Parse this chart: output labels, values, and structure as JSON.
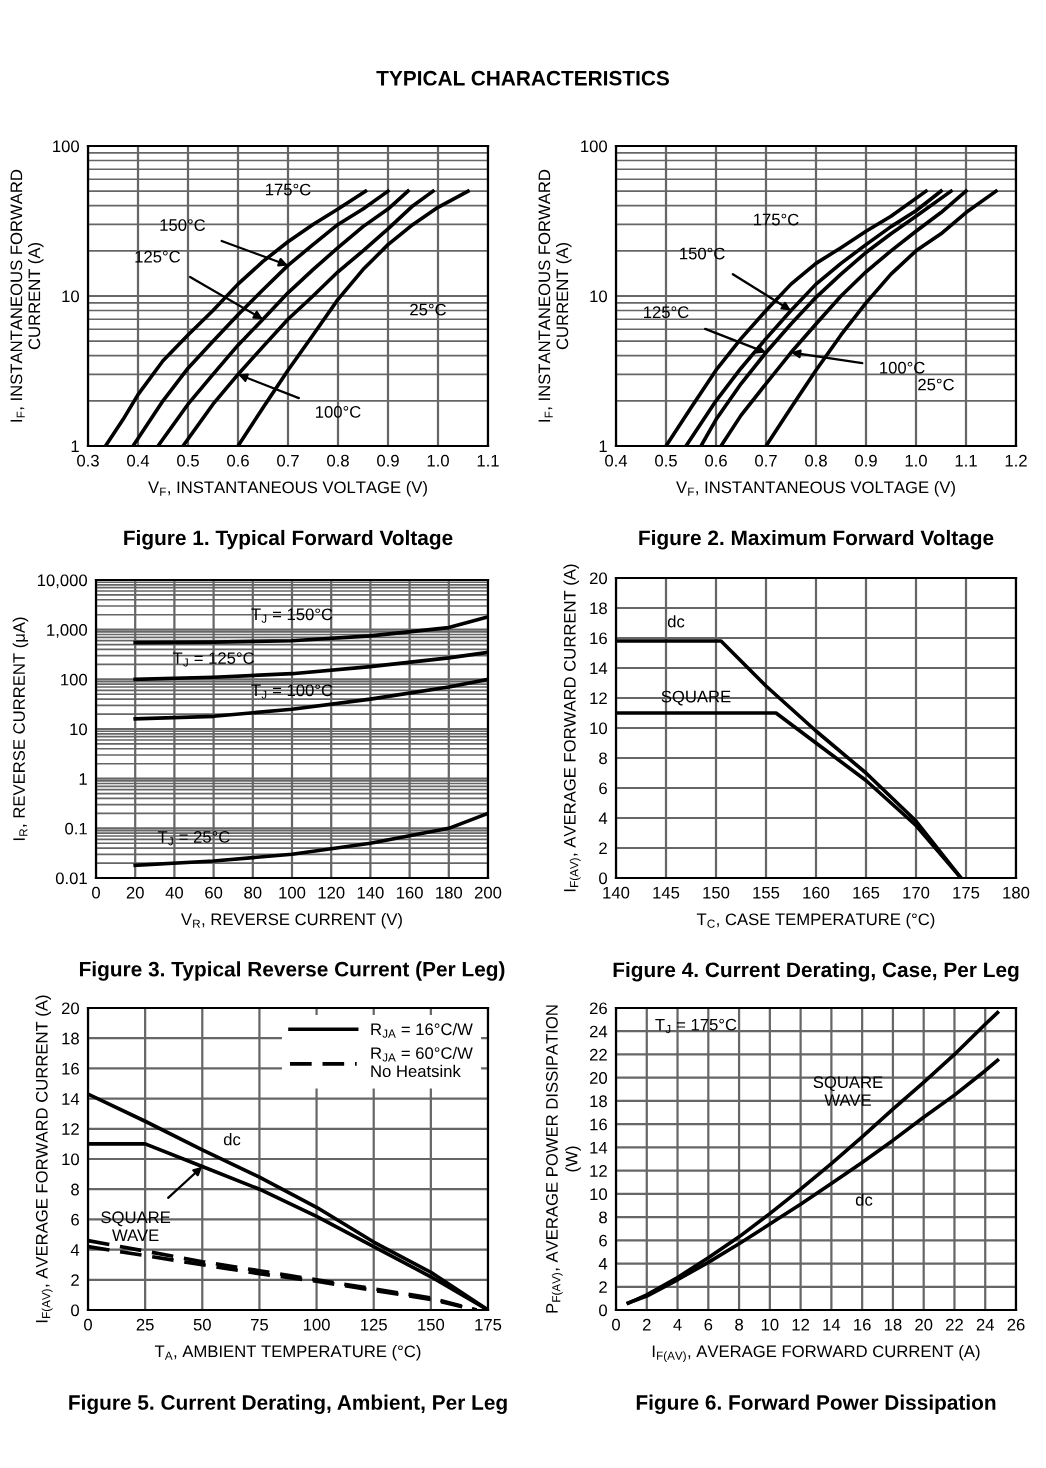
{
  "chart_data": [
    {
      "type": "line",
      "title": "Figure 1. Typical Forward Voltage",
      "xlabel": "V$_{F}$, INSTANTANEOUS VOLTAGE (V)",
      "ylabel": "I$_{F}$, INSTANTANEOUS FORWARD\nCURRENT (A)",
      "log": "y",
      "grid": true,
      "xlim": [
        0.3,
        1.1
      ],
      "xticks": [
        0.3,
        0.4,
        0.5,
        0.6,
        0.7,
        0.8,
        0.9,
        {
          "value": 1.0,
          "label": "1.0"
        },
        1.1
      ],
      "ylim": [
        1,
        100
      ],
      "yticks": [
        1,
        10,
        100
      ],
      "series": [
        {
          "color": "#000000",
          "x": [
            0.335,
            0.37,
            0.4,
            0.45,
            0.5,
            0.55,
            0.6,
            0.65,
            0.7,
            0.75,
            0.8,
            0.855
          ],
          "values": [
            1,
            1.5,
            2.2,
            3.7,
            5.5,
            8,
            12,
            17,
            23,
            30,
            38,
            50
          ]
        },
        {
          "color": "#000000",
          "x": [
            0.39,
            0.45,
            0.5,
            0.55,
            0.6,
            0.65,
            0.7,
            0.75,
            0.8,
            0.85,
            0.9
          ],
          "values": [
            1,
            2,
            3.3,
            5,
            7.5,
            11,
            16,
            22,
            30,
            38,
            50
          ]
        },
        {
          "color": "#000000",
          "x": [
            0.44,
            0.5,
            0.55,
            0.6,
            0.65,
            0.7,
            0.75,
            0.8,
            0.85,
            0.9,
            0.94
          ],
          "values": [
            1,
            1.9,
            3,
            4.7,
            7,
            10.5,
            15,
            21,
            29,
            38,
            50
          ]
        },
        {
          "color": "#000000",
          "x": [
            0.49,
            0.55,
            0.6,
            0.65,
            0.7,
            0.75,
            0.8,
            0.85,
            0.9,
            0.95,
            0.99
          ],
          "values": [
            1,
            1.9,
            3,
            4.6,
            7,
            10,
            14.5,
            20,
            28,
            40,
            50
          ]
        },
        {
          "color": "#000000",
          "x": [
            0.6,
            0.65,
            0.7,
            0.75,
            0.8,
            0.85,
            0.9,
            0.95,
            1.0,
            1.06
          ],
          "values": [
            1,
            1.8,
            3.2,
            5.5,
            9.5,
            15,
            22,
            30,
            39,
            50
          ]
        }
      ],
      "annotations": [
        "TYPICAL CHARACTERISTICS",
        "175°C",
        {
          "text": "150°C",
          "x": 0.7,
          "y": 16
        },
        {
          "text": "125°C",
          "x": 0.65,
          "y": 7
        },
        {
          "text": "100°C",
          "x": 0.6,
          "y": 3
        },
        "25°C"
      ]
    },
    {
      "type": "line",
      "title": "Figure 2. Maximum Forward Voltage",
      "xlabel": "V$_{F}$, INSTANTANEOUS VOLTAGE (V)",
      "ylabel": "I$_{F}$, INSTANTANEOUS FORWARD\nCURRENT (A)",
      "log": "y",
      "grid": true,
      "xlim": [
        0.4,
        1.2
      ],
      "xticks": [
        0.4,
        0.5,
        0.6,
        0.7,
        0.8,
        0.9,
        {
          "value": 1.0,
          "label": "1.0"
        },
        1.1,
        1.2
      ],
      "ylim": [
        1,
        100
      ],
      "yticks": [
        1,
        10,
        100
      ],
      "series": [
        {
          "color": "#000000",
          "x": [
            0.5,
            0.55,
            0.6,
            0.65,
            0.7,
            0.75,
            0.8,
            0.85,
            0.9,
            0.95,
            1.02
          ],
          "values": [
            1,
            1.8,
            3.2,
            5.2,
            8,
            12,
            16.5,
            21,
            27,
            34,
            50
          ]
        },
        {
          "color": "#000000",
          "x": [
            0.54,
            0.6,
            0.65,
            0.7,
            0.75,
            0.8,
            0.85,
            0.9,
            0.95,
            1.0,
            1.05
          ],
          "values": [
            1,
            2,
            3.3,
            5.2,
            8,
            12,
            16.5,
            22,
            29,
            37,
            50
          ]
        },
        {
          "color": "#000000",
          "x": [
            0.57,
            0.6,
            0.65,
            0.7,
            0.75,
            0.8,
            0.85,
            0.9,
            0.95,
            1.0,
            1.07
          ],
          "values": [
            1,
            1.5,
            2.6,
            4.2,
            6.5,
            9.8,
            14,
            19.5,
            26,
            34,
            50
          ]
        },
        {
          "color": "#000000",
          "x": [
            0.61,
            0.65,
            0.7,
            0.75,
            0.8,
            0.85,
            0.9,
            0.95,
            1.0,
            1.05,
            1.1
          ],
          "values": [
            1,
            1.6,
            2.6,
            4.2,
            6.5,
            10,
            14.5,
            20,
            27,
            36,
            50
          ]
        },
        {
          "color": "#000000",
          "x": [
            0.7,
            0.75,
            0.8,
            0.85,
            0.9,
            0.95,
            1.0,
            1.05,
            1.1,
            1.16
          ],
          "values": [
            1,
            1.8,
            3.2,
            5.5,
            9,
            14,
            20,
            26,
            36,
            50
          ]
        }
      ],
      "annotations": [
        "175°C",
        {
          "text": "150°C",
          "x": 0.75,
          "y": 8
        },
        {
          "text": "125°C",
          "x": 0.7,
          "y": 4.2
        },
        {
          "text": "100°C",
          "x": 0.75,
          "y": 4.2
        },
        "25°C"
      ]
    },
    {
      "type": "line",
      "title": "Figure 3. Typical Reverse Current (Per Leg)",
      "xlabel": "V$_{R}$, REVERSE CURRENT (V)",
      "ylabel": "I$_{R}$, REVERSE CURRENT (μA)",
      "log": "y",
      "grid": true,
      "xlim": [
        0,
        200
      ],
      "xticks": [
        0,
        20,
        40,
        60,
        80,
        100,
        120,
        140,
        160,
        180,
        200
      ],
      "ylim": [
        0.01,
        10000
      ],
      "yticks": [
        0.01,
        0.1,
        1,
        10,
        100,
        {
          "value": 1000,
          "label": "1,000"
        },
        {
          "value": 10000,
          "label": "10,000"
        }
      ],
      "series": [
        {
          "color": "#000000",
          "x": [
            20,
            60,
            100,
            140,
            180,
            200
          ],
          "values": [
            550,
            560,
            600,
            750,
            1100,
            1800
          ]
        },
        {
          "color": "#000000",
          "x": [
            20,
            60,
            100,
            140,
            180,
            200
          ],
          "values": [
            100,
            110,
            130,
            180,
            270,
            350
          ]
        },
        {
          "color": "#000000",
          "x": [
            20,
            60,
            100,
            140,
            180,
            200
          ],
          "values": [
            16,
            18,
            25,
            40,
            70,
            100
          ]
        },
        {
          "color": "#000000",
          "x": [
            20,
            60,
            100,
            140,
            180,
            200
          ],
          "values": [
            0.018,
            0.022,
            0.03,
            0.05,
            0.1,
            0.2
          ]
        }
      ],
      "annotations": [
        "T$_{J}$ = 150°C",
        "T$_{J}$ = 125°C",
        "T$_{J}$ = 100°C",
        "T$_{J}$ = 25°C"
      ]
    },
    {
      "type": "line",
      "title": "Figure 4. Current Derating, Case, Per Leg",
      "xlabel": "T$_{C}$, CASE TEMPERATURE (°C)",
      "ylabel": "I$_{F(AV)}$, AVERAGE FORWARD CURRENT (A)",
      "grid": true,
      "xlim": [
        140,
        180
      ],
      "xticks": [
        140,
        145,
        150,
        155,
        160,
        165,
        170,
        175,
        180
      ],
      "ylim": [
        0,
        20
      ],
      "yticks": [
        0,
        2,
        4,
        6,
        8,
        10,
        12,
        14,
        16,
        18,
        20
      ],
      "series": [
        {
          "color": "#000000",
          "x": [
            140,
            150.5,
            155,
            160,
            165,
            170,
            174.5
          ],
          "values": [
            15.8,
            15.8,
            12.8,
            9.8,
            7,
            3.8,
            0
          ]
        },
        {
          "color": "#000000",
          "x": [
            140,
            156,
            160,
            165,
            170,
            174.5
          ],
          "values": [
            11,
            11,
            9,
            6.5,
            3.5,
            0
          ]
        }
      ],
      "annotations": [
        "dc",
        "SQUARE"
      ]
    },
    {
      "type": "line",
      "title": "Figure 5. Current Derating, Ambient, Per Leg",
      "xlabel": "T$_{A}$, AMBIENT TEMPERATURE (°C)",
      "ylabel": "I$_{F(AV)}$, AVERAGE FORWARD CURRENT (A)",
      "grid": true,
      "legend": "top right",
      "xlim": [
        0,
        175
      ],
      "xticks": [
        0,
        25,
        50,
        75,
        100,
        125,
        150,
        175
      ],
      "ylim": [
        0,
        20
      ],
      "yticks": [
        0,
        2,
        4,
        6,
        8,
        10,
        12,
        14,
        16,
        18,
        20
      ],
      "series": [
        {
          "name": "R$_{JA}$ = 16°C/W",
          "color": "#000000",
          "line_style": "solid",
          "x": [
            0,
            25,
            50,
            75,
            100,
            125,
            150,
            175
          ],
          "values": [
            14.3,
            12.5,
            10.6,
            8.8,
            6.8,
            4.5,
            2.5,
            0
          ]
        },
        {
          "color": "#000000",
          "line_style": "solid",
          "x": [
            0,
            25,
            50,
            75,
            100,
            125,
            150,
            175
          ],
          "values": [
            11,
            11,
            9.5,
            8,
            6.2,
            4.2,
            2.2,
            0
          ]
        },
        {
          "name": "R$_{JA}$ = 60°C/W\nNo Heatsink",
          "color": "#000000",
          "line_style": "dashed",
          "x": [
            0,
            25,
            50,
            75,
            100,
            125,
            150,
            170
          ],
          "values": [
            4.6,
            3.9,
            3.2,
            2.6,
            2.0,
            1.4,
            0.8,
            0
          ]
        },
        {
          "color": "#000000",
          "line_style": "dashed",
          "x": [
            0,
            25,
            50,
            75,
            100,
            125,
            150,
            170
          ],
          "values": [
            4.2,
            3.6,
            3.0,
            2.4,
            1.9,
            1.3,
            0.7,
            0
          ]
        }
      ],
      "annotations": [
        "dc",
        {
          "text": "SQUARE\nWAVE",
          "x": 50,
          "y": 9.5
        }
      ]
    },
    {
      "type": "line",
      "title": "Figure 6. Forward Power Dissipation",
      "xlabel": "I$_{F(AV)}$, AVERAGE FORWARD CURRENT (A)",
      "ylabel": "P$_{F(AV)}$, AVERAGE POWER DISSIPATION\n(W)",
      "grid": true,
      "xlim": [
        0,
        26
      ],
      "xticks": [
        0,
        2,
        4,
        6,
        8,
        10,
        12,
        14,
        16,
        18,
        20,
        22,
        24,
        26
      ],
      "ylim": [
        0,
        26
      ],
      "yticks": [
        0,
        2,
        4,
        6,
        8,
        10,
        12,
        14,
        16,
        18,
        20,
        22,
        24,
        26
      ],
      "series": [
        {
          "color": "#000000",
          "x": [
            0.8,
            2,
            4,
            6,
            8,
            10,
            12,
            14,
            16,
            18,
            20,
            22,
            24,
            24.8
          ],
          "values": [
            0.6,
            1.3,
            2.8,
            4.5,
            6.3,
            8.3,
            10.4,
            12.6,
            14.9,
            17.3,
            19.6,
            22,
            24.6,
            25.6
          ]
        },
        {
          "color": "#000000",
          "x": [
            0.8,
            2,
            4,
            6,
            8,
            10,
            12,
            14,
            16,
            18,
            20,
            22,
            24,
            24.8
          ],
          "values": [
            0.6,
            1.2,
            2.6,
            4.1,
            5.7,
            7.4,
            9.1,
            10.9,
            12.7,
            14.6,
            16.6,
            18.5,
            20.6,
            21.5
          ]
        }
      ],
      "annotations": [
        "T$_{J}$ = 175°C",
        "SQUARE\nWAVE",
        "dc"
      ]
    }
  ]
}
